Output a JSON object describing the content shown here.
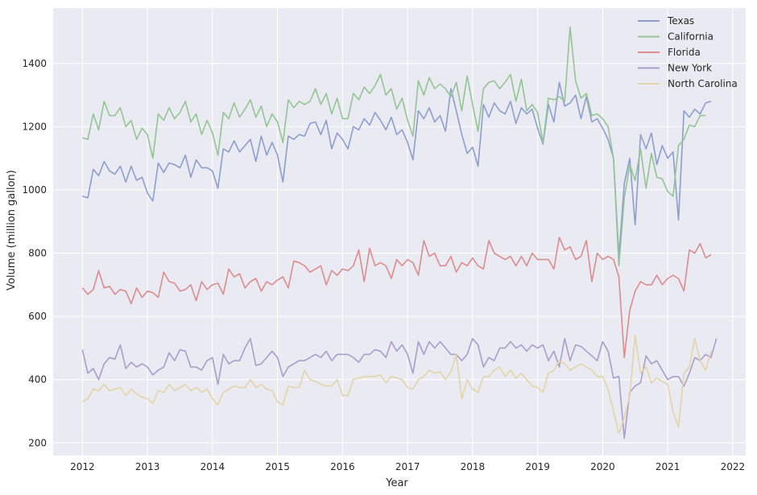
{
  "chart_data": {
    "type": "line",
    "title": "",
    "xlabel": "Year",
    "ylabel": "Volume (million gallon)",
    "xlim": [
      2011.55,
      2022.2
    ],
    "ylim": [
      160,
      1575
    ],
    "x_ticks": [
      2012,
      2013,
      2014,
      2015,
      2016,
      2017,
      2018,
      2019,
      2020,
      2021,
      2022
    ],
    "y_ticks": [
      200,
      400,
      600,
      800,
      1000,
      1200,
      1400
    ],
    "grid": true,
    "legend_position": "top-right",
    "x_start": 2012.0,
    "x_step": 0.08333,
    "series": [
      {
        "name": "Texas",
        "color": "#8c9ecd",
        "values": [
          980,
          975,
          1065,
          1045,
          1090,
          1060,
          1050,
          1075,
          1025,
          1075,
          1030,
          1040,
          990,
          965,
          1085,
          1055,
          1085,
          1080,
          1070,
          1110,
          1040,
          1095,
          1070,
          1070,
          1060,
          1005,
          1130,
          1120,
          1155,
          1120,
          1140,
          1160,
          1090,
          1170,
          1110,
          1150,
          1110,
          1025,
          1170,
          1160,
          1175,
          1170,
          1210,
          1215,
          1175,
          1220,
          1130,
          1180,
          1160,
          1130,
          1200,
          1190,
          1225,
          1205,
          1245,
          1220,
          1190,
          1230,
          1175,
          1190,
          1150,
          1095,
          1250,
          1225,
          1260,
          1215,
          1235,
          1185,
          1320,
          1250,
          1175,
          1115,
          1135,
          1075,
          1270,
          1230,
          1275,
          1250,
          1240,
          1280,
          1210,
          1260,
          1240,
          1255,
          1195,
          1145,
          1270,
          1215,
          1340,
          1265,
          1275,
          1300,
          1225,
          1295,
          1215,
          1225,
          1195,
          1160,
          1100,
          790,
          1020,
          1100,
          890,
          1175,
          1130,
          1180,
          1080,
          1140,
          1100,
          1120,
          905,
          1250,
          1230,
          1255,
          1240,
          1275,
          1280
        ]
      },
      {
        "name": "California",
        "color": "#93c593",
        "values": [
          1165,
          1160,
          1240,
          1190,
          1280,
          1235,
          1235,
          1260,
          1200,
          1220,
          1160,
          1195,
          1175,
          1100,
          1240,
          1220,
          1260,
          1225,
          1245,
          1280,
          1215,
          1240,
          1175,
          1220,
          1180,
          1110,
          1245,
          1225,
          1275,
          1230,
          1255,
          1285,
          1230,
          1265,
          1200,
          1240,
          1215,
          1150,
          1285,
          1260,
          1280,
          1270,
          1280,
          1320,
          1270,
          1305,
          1240,
          1290,
          1225,
          1225,
          1305,
          1285,
          1325,
          1305,
          1330,
          1365,
          1300,
          1320,
          1255,
          1290,
          1220,
          1170,
          1345,
          1300,
          1355,
          1320,
          1335,
          1320,
          1295,
          1340,
          1250,
          1360,
          1270,
          1185,
          1320,
          1340,
          1345,
          1320,
          1340,
          1365,
          1280,
          1350,
          1250,
          1270,
          1245,
          1150,
          1290,
          1285,
          1295,
          1280,
          1515,
          1345,
          1290,
          1305,
          1235,
          1240,
          1225,
          1200,
          1100,
          760,
          975,
          1080,
          1030,
          1130,
          1005,
          1115,
          1040,
          1035,
          995,
          980,
          1140,
          1160,
          1205,
          1200,
          1235,
          1235
        ]
      },
      {
        "name": "Florida",
        "color": "#dc8c8c",
        "values": [
          690,
          670,
          685,
          745,
          690,
          695,
          670,
          685,
          680,
          640,
          690,
          660,
          680,
          675,
          660,
          740,
          710,
          705,
          680,
          685,
          700,
          650,
          710,
          685,
          700,
          705,
          670,
          750,
          725,
          735,
          690,
          710,
          720,
          680,
          710,
          700,
          715,
          725,
          690,
          775,
          770,
          760,
          740,
          750,
          760,
          700,
          745,
          730,
          750,
          745,
          760,
          810,
          710,
          815,
          760,
          770,
          760,
          720,
          780,
          760,
          780,
          770,
          730,
          840,
          790,
          800,
          760,
          760,
          790,
          740,
          770,
          760,
          785,
          760,
          750,
          840,
          800,
          790,
          780,
          790,
          760,
          790,
          760,
          800,
          780,
          780,
          780,
          750,
          850,
          810,
          820,
          780,
          790,
          840,
          710,
          800,
          780,
          790,
          780,
          725,
          470,
          620,
          680,
          710,
          700,
          700,
          730,
          700,
          720,
          730,
          720,
          680,
          810,
          800,
          830,
          785,
          795
        ]
      },
      {
        "name": "New York",
        "color": "#a99dcc",
        "values": [
          495,
          420,
          435,
          400,
          450,
          470,
          465,
          510,
          435,
          455,
          440,
          450,
          440,
          415,
          430,
          440,
          485,
          460,
          495,
          490,
          440,
          440,
          430,
          460,
          470,
          385,
          480,
          450,
          460,
          460,
          500,
          530,
          445,
          450,
          470,
          490,
          470,
          410,
          440,
          450,
          460,
          460,
          470,
          480,
          470,
          490,
          460,
          480,
          480,
          480,
          470,
          455,
          480,
          480,
          495,
          490,
          470,
          520,
          490,
          510,
          480,
          420,
          520,
          480,
          520,
          500,
          520,
          500,
          480,
          480,
          460,
          480,
          530,
          510,
          440,
          470,
          460,
          500,
          500,
          520,
          500,
          510,
          490,
          510,
          500,
          510,
          460,
          490,
          440,
          530,
          460,
          510,
          505,
          490,
          475,
          460,
          520,
          490,
          405,
          410,
          215,
          360,
          380,
          390,
          475,
          450,
          460,
          430,
          400,
          410,
          410,
          380,
          420,
          470,
          460,
          480,
          470,
          530
        ]
      },
      {
        "name": "North Carolina",
        "color": "#e3d4a7",
        "values": [
          330,
          340,
          370,
          365,
          385,
          365,
          370,
          375,
          350,
          370,
          355,
          345,
          340,
          325,
          365,
          360,
          385,
          365,
          375,
          385,
          365,
          375,
          360,
          370,
          340,
          320,
          360,
          370,
          380,
          375,
          375,
          400,
          375,
          385,
          370,
          365,
          330,
          320,
          380,
          375,
          375,
          430,
          400,
          395,
          385,
          380,
          380,
          400,
          350,
          350,
          400,
          405,
          410,
          410,
          410,
          415,
          390,
          410,
          405,
          400,
          375,
          370,
          400,
          410,
          430,
          420,
          425,
          400,
          425,
          480,
          340,
          400,
          370,
          360,
          410,
          410,
          430,
          440,
          410,
          430,
          405,
          420,
          400,
          380,
          375,
          360,
          420,
          430,
          460,
          450,
          430,
          440,
          450,
          440,
          430,
          410,
          410,
          370,
          300,
          230,
          280,
          350,
          540,
          420,
          440,
          390,
          405,
          395,
          385,
          300,
          250,
          420,
          440,
          530,
          460,
          430,
          490
        ]
      }
    ]
  }
}
